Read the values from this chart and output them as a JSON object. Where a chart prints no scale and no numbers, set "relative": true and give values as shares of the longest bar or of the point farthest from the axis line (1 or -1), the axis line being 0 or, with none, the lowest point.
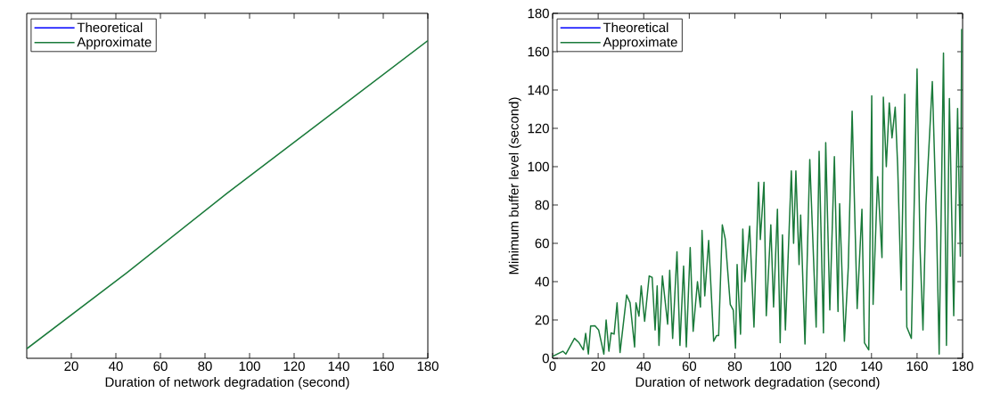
{
  "chart_data": [
    {
      "type": "line",
      "relative": true,
      "xlabel": "Duration of network degradation (second)",
      "xlim": [
        0,
        180
      ],
      "xticks": [
        20,
        40,
        60,
        80,
        100,
        120,
        140,
        160,
        180
      ],
      "legend": "top left",
      "x": [
        0,
        45,
        90,
        135,
        180
      ],
      "series": [
        {
          "name": "Theoretical",
          "color": "#0000ff",
          "values": [
            null,
            null,
            null,
            null,
            null
          ]
        },
        {
          "name": "Approximate",
          "color": "#1a7a3a",
          "values": [
            0.03,
            0.27,
            0.52,
            0.76,
            1
          ]
        }
      ]
    },
    {
      "type": "line",
      "xlabel": "Duration of network degradation (second)",
      "ylabel": "Minimum buffer level (second)",
      "xlim": [
        0,
        180
      ],
      "xticks": [
        0,
        20,
        40,
        60,
        80,
        100,
        120,
        140,
        160,
        180
      ],
      "ylim": [
        0,
        180
      ],
      "yticks": [
        0,
        20,
        40,
        60,
        80,
        100,
        120,
        140,
        160,
        180
      ],
      "legend": "top left",
      "x": [
        0,
        4.5,
        5.8,
        9.6,
        11.6,
        13.5,
        14.5,
        15.7,
        16.7,
        18.6,
        20.2,
        22.5,
        23.5,
        24.7,
        25.7,
        27,
        28.3,
        29.6,
        32.5,
        34,
        36,
        36.6,
        37.9,
        38.9,
        40.4,
        42.4,
        43.7,
        45,
        45.9,
        46.7,
        48.2,
        50.5,
        51.4,
        52.7,
        54.6,
        55.9,
        57.5,
        58.7,
        60.4,
        61.7,
        63.6,
        64.9,
        65.6,
        66.8,
        68.5,
        70.7,
        72,
        72.9,
        74.5,
        75.8,
        78,
        79.3,
        80.3,
        81,
        82.5,
        83.5,
        84.4,
        86.5,
        88.4,
        90.4,
        91.2,
        92.8,
        93.8,
        95.8,
        97,
        98.7,
        99.9,
        100.9,
        102.2,
        104.8,
        105.8,
        106.8,
        108.2,
        108.9,
        110.8,
        112.9,
        115.7,
        117,
        118.9,
        119.9,
        121.7,
        123.7,
        125.3,
        126,
        128.1,
        129.8,
        131.5,
        133.7,
        135.8,
        136.9,
        138.8,
        140.1,
        140.7,
        142.7,
        144.6,
        145.2,
        146.5,
        147.8,
        149,
        150.4,
        151.5,
        153,
        154.6,
        155.5,
        157.5,
        160,
        161.3,
        162.6,
        163.9,
        166.7,
        168.6,
        169.7,
        171.6,
        172.9,
        174.2,
        176.1,
        177.8,
        179,
        179.6
      ],
      "series": [
        {
          "name": "Theoretical",
          "color": "#0000ff",
          "values": [
            null,
            null,
            null,
            null,
            null,
            null,
            null,
            null,
            null,
            null,
            null,
            null,
            null,
            null,
            null,
            null,
            null,
            null,
            null,
            null,
            null,
            null,
            null,
            null,
            null,
            null,
            null,
            null,
            null,
            null,
            null,
            null,
            null,
            null,
            null,
            null,
            null,
            null,
            null,
            null,
            null,
            null,
            null,
            null,
            null,
            null,
            null,
            null,
            null,
            null,
            null,
            null,
            null,
            null,
            null,
            null,
            null,
            null,
            null,
            null,
            null,
            null,
            null,
            null,
            null,
            null,
            null,
            null,
            null,
            null,
            null,
            null,
            null,
            null,
            null,
            null,
            null,
            null,
            null,
            null,
            null,
            null,
            null,
            null,
            null,
            null,
            null,
            null,
            null,
            null,
            null,
            null,
            null,
            null,
            null,
            null,
            null,
            null,
            null,
            null,
            null,
            null,
            null,
            null,
            null,
            null,
            null,
            null,
            null,
            null,
            null,
            null,
            null,
            null,
            null,
            null,
            null,
            null,
            null
          ]
        },
        {
          "name": "Approximate",
          "color": "#1a7a3a",
          "values": [
            1,
            3.7,
            2.2,
            10.4,
            8.1,
            4.4,
            13,
            2.2,
            16.9,
            17,
            14.8,
            2.2,
            20,
            3.7,
            13.3,
            12.6,
            28.9,
            3,
            33,
            29,
            5.9,
            28.9,
            22,
            37.8,
            19.3,
            43,
            42.2,
            14.8,
            37.8,
            6.7,
            43,
            17.8,
            45.9,
            10.4,
            55.6,
            6.7,
            48.1,
            5.9,
            57.8,
            14.1,
            40,
            26.7,
            66.7,
            32.6,
            61.5,
            8.9,
            11.9,
            11.9,
            69.6,
            62.2,
            28.1,
            25.2,
            5.2,
            48.9,
            12.6,
            67.4,
            40,
            68.9,
            16.3,
            91.9,
            62,
            91.9,
            22.2,
            69.6,
            26.7,
            77.8,
            8.1,
            64.4,
            14.8,
            97.8,
            60,
            97.8,
            48.9,
            74.8,
            7.4,
            103.7,
            16.3,
            108,
            13.3,
            112.6,
            25.2,
            105.2,
            24.4,
            80.7,
            8.9,
            47.4,
            128.9,
            25.9,
            77.8,
            8.1,
            4.4,
            137,
            28.1,
            94.8,
            52.6,
            136.3,
            100,
            133.3,
            115,
            131.1,
            100,
            35.6,
            137.8,
            16.3,
            10.4,
            151,
            57.8,
            14.8,
            80,
            144.4,
            66.7,
            2.2,
            159.3,
            6.7,
            135.6,
            22.2,
            130.4,
            53.3,
            171.9
          ]
        }
      ]
    }
  ]
}
